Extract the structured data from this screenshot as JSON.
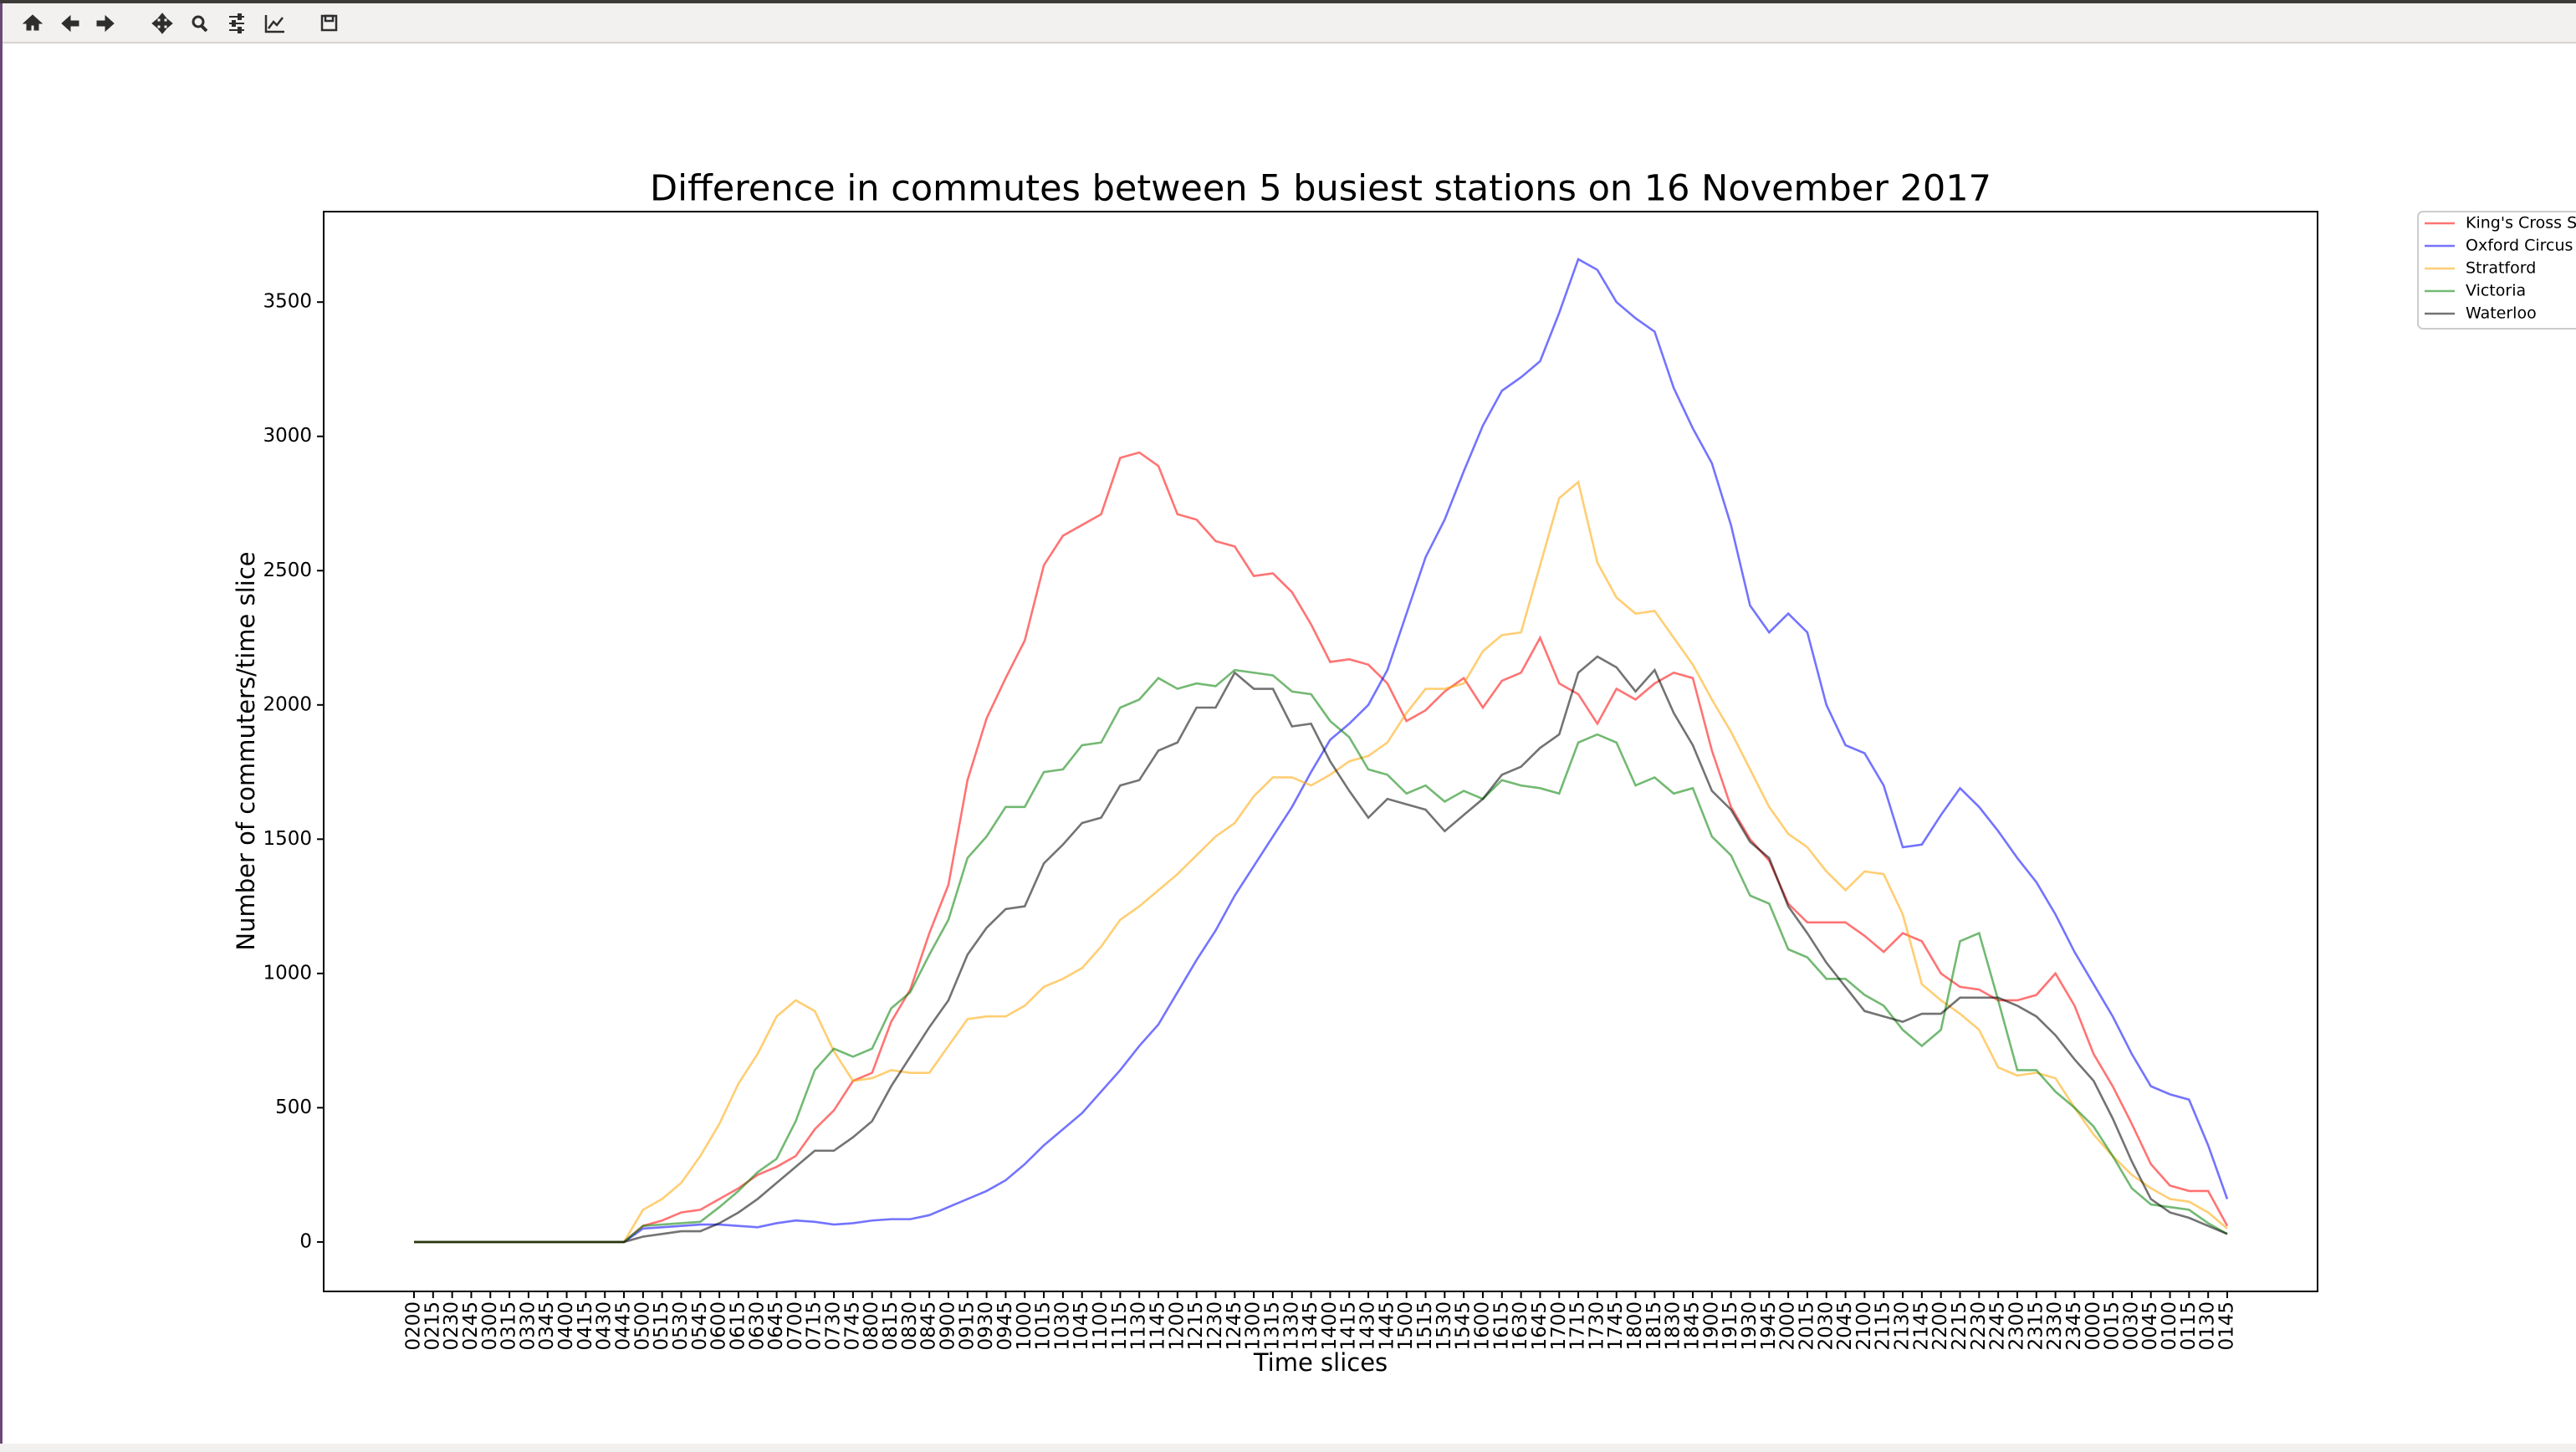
{
  "chart_data": {
    "type": "line",
    "title": "Difference in commutes between 5 busiest stations  on 16 November 2017",
    "x_label": "Time slices",
    "y_label": "Number of commuters/time slice",
    "categories": [
      "0200",
      "0215",
      "0230",
      "0245",
      "0300",
      "0315",
      "0330",
      "0345",
      "0400",
      "0415",
      "0430",
      "0445",
      "0500",
      "0515",
      "0530",
      "0545",
      "0600",
      "0615",
      "0630",
      "0645",
      "0700",
      "0715",
      "0730",
      "0745",
      "0800",
      "0815",
      "0830",
      "0845",
      "0900",
      "0915",
      "0930",
      "0945",
      "1000",
      "1015",
      "1030",
      "1045",
      "1100",
      "1115",
      "1130",
      "1145",
      "1200",
      "1215",
      "1230",
      "1245",
      "1300",
      "1315",
      "1330",
      "1345",
      "1400",
      "1415",
      "1430",
      "1445",
      "1500",
      "1515",
      "1530",
      "1545",
      "1600",
      "1615",
      "1630",
      "1645",
      "1700",
      "1715",
      "1730",
      "1745",
      "1800",
      "1815",
      "1830",
      "1845",
      "1900",
      "1915",
      "1930",
      "1945",
      "2000",
      "2015",
      "2030",
      "2045",
      "2100",
      "2115",
      "2130",
      "2145",
      "2200",
      "2215",
      "2230",
      "2245",
      "2300",
      "2315",
      "2330",
      "2345",
      "0000",
      "0015",
      "0030",
      "0045",
      "0100",
      "0115",
      "0130",
      "0145"
    ],
    "series": [
      {
        "name": "King's Cross St",
        "color": "#ff0000",
        "values": [
          0,
          0,
          0,
          0,
          0,
          0,
          0,
          0,
          0,
          0,
          0,
          0,
          60,
          80,
          110,
          120,
          160,
          200,
          250,
          280,
          320,
          420,
          490,
          600,
          630,
          820,
          940,
          1150,
          1330,
          1720,
          1950,
          2100,
          2240,
          2520,
          2630,
          2670,
          2710,
          2920,
          2940,
          2890,
          2710,
          2690,
          2610,
          2590,
          2480,
          2490,
          2420,
          2300,
          2160,
          2170,
          2150,
          2080,
          1940,
          1980,
          2050,
          2100,
          1990,
          2090,
          2120,
          2250,
          2080,
          2040,
          1930,
          2060,
          2020,
          2080,
          2120,
          2100,
          1830,
          1620,
          1500,
          1420,
          1260,
          1190,
          1190,
          1190,
          1140,
          1080,
          1150,
          1120,
          1000,
          950,
          940,
          900,
          900,
          920,
          1000,
          880,
          700,
          580,
          440,
          290,
          210,
          190,
          190,
          60
        ]
      },
      {
        "name": "Oxford Circus",
        "color": "#0000ff",
        "values": [
          0,
          0,
          0,
          0,
          0,
          0,
          0,
          0,
          0,
          0,
          0,
          0,
          50,
          55,
          60,
          65,
          65,
          60,
          55,
          70,
          80,
          75,
          65,
          70,
          80,
          85,
          85,
          100,
          130,
          160,
          190,
          230,
          290,
          360,
          420,
          480,
          560,
          640,
          730,
          810,
          930,
          1050,
          1160,
          1290,
          1400,
          1510,
          1620,
          1750,
          1870,
          1930,
          2000,
          2130,
          2340,
          2550,
          2690,
          2870,
          3040,
          3170,
          3220,
          3280,
          3460,
          3660,
          3620,
          3500,
          3440,
          3390,
          3180,
          3030,
          2900,
          2670,
          2370,
          2270,
          2340,
          2270,
          2000,
          1850,
          1820,
          1700,
          1470,
          1480,
          1590,
          1690,
          1620,
          1530,
          1430,
          1340,
          1220,
          1080,
          960,
          840,
          700,
          580,
          550,
          530,
          360,
          160
        ]
      },
      {
        "name": "Stratford",
        "color": "#ffa500",
        "values": [
          0,
          0,
          0,
          0,
          0,
          0,
          0,
          0,
          0,
          0,
          0,
          0,
          120,
          160,
          220,
          320,
          440,
          590,
          700,
          840,
          900,
          860,
          710,
          600,
          610,
          640,
          630,
          630,
          730,
          830,
          840,
          840,
          880,
          950,
          980,
          1020,
          1100,
          1200,
          1250,
          1310,
          1370,
          1440,
          1510,
          1560,
          1660,
          1730,
          1730,
          1700,
          1740,
          1790,
          1810,
          1860,
          1970,
          2060,
          2060,
          2080,
          2200,
          2260,
          2270,
          2520,
          2770,
          2830,
          2530,
          2400,
          2340,
          2350,
          2250,
          2150,
          2020,
          1900,
          1760,
          1620,
          1520,
          1470,
          1380,
          1310,
          1380,
          1370,
          1220,
          960,
          900,
          850,
          790,
          650,
          620,
          630,
          610,
          500,
          400,
          320,
          250,
          200,
          160,
          150,
          110,
          50
        ]
      },
      {
        "name": "Victoria",
        "color": "#008000",
        "values": [
          0,
          0,
          0,
          0,
          0,
          0,
          0,
          0,
          0,
          0,
          0,
          0,
          60,
          65,
          70,
          75,
          130,
          190,
          260,
          310,
          450,
          640,
          720,
          690,
          720,
          870,
          930,
          1070,
          1200,
          1430,
          1510,
          1620,
          1620,
          1750,
          1760,
          1850,
          1860,
          1990,
          2020,
          2100,
          2060,
          2080,
          2070,
          2130,
          2120,
          2110,
          2050,
          2040,
          1940,
          1880,
          1760,
          1740,
          1670,
          1700,
          1640,
          1680,
          1650,
          1720,
          1700,
          1690,
          1670,
          1860,
          1890,
          1860,
          1700,
          1730,
          1670,
          1690,
          1510,
          1440,
          1290,
          1260,
          1090,
          1060,
          980,
          980,
          920,
          880,
          790,
          730,
          790,
          1120,
          1150,
          900,
          640,
          640,
          560,
          500,
          430,
          320,
          200,
          140,
          130,
          120,
          70,
          30
        ]
      },
      {
        "name": "Waterloo",
        "color": "#000000",
        "values": [
          0,
          0,
          0,
          0,
          0,
          0,
          0,
          0,
          0,
          0,
          0,
          0,
          20,
          30,
          40,
          40,
          70,
          110,
          160,
          220,
          280,
          340,
          340,
          390,
          450,
          580,
          690,
          800,
          900,
          1070,
          1170,
          1240,
          1250,
          1410,
          1480,
          1560,
          1580,
          1700,
          1720,
          1830,
          1860,
          1990,
          1990,
          2120,
          2060,
          2060,
          1920,
          1930,
          1790,
          1680,
          1580,
          1650,
          1630,
          1610,
          1530,
          1590,
          1650,
          1740,
          1770,
          1840,
          1890,
          2120,
          2180,
          2140,
          2050,
          2130,
          1970,
          1850,
          1680,
          1610,
          1490,
          1430,
          1250,
          1150,
          1040,
          950,
          860,
          840,
          820,
          850,
          850,
          910,
          910,
          910,
          880,
          840,
          770,
          680,
          600,
          460,
          300,
          160,
          110,
          90,
          60,
          30
        ]
      }
    ],
    "alpha": 0.55,
    "ylim": [
      -184,
      3837
    ],
    "yticks": [
      0,
      500,
      1000,
      1500,
      2000,
      2500,
      3000,
      3500
    ],
    "grid": false,
    "legend": "outside-upper-right"
  }
}
